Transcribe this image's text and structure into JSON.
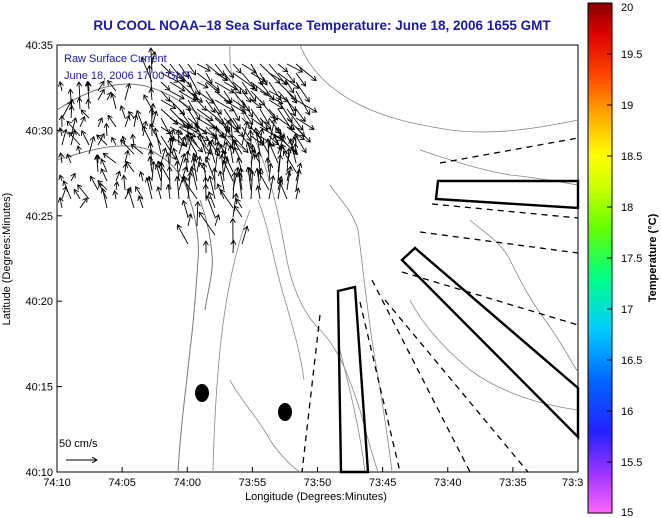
{
  "title": "RU COOL  NOAA–18  Sea Surface Temperature:  June 18, 2006 1655 GMT",
  "annotation": {
    "line1": "Raw Surface Current",
    "line2": "June 18, 2006 17:00 GMT"
  },
  "scale_label": "50 cm/s",
  "map": {
    "xlabel": "Longitude (Degrees:Minutes)",
    "ylabel": "Latitude (Degrees:Minutes)",
    "x_ticks": [
      "74:10",
      "74:05",
      "74:00",
      "73:55",
      "73:50",
      "73:45",
      "73:40",
      "73:35",
      "73:3"
    ],
    "y_ticks": [
      "40:35",
      "40:30",
      "40:25",
      "40:20",
      "40:15",
      "40:10"
    ],
    "text_color": "#1a1aa0"
  },
  "colorbar": {
    "label": "Temperature (°C)",
    "ticks": [
      "20",
      "19.5",
      "19",
      "18.5",
      "18",
      "17.5",
      "17",
      "16.5",
      "16",
      "15.5",
      "15"
    ],
    "min": 15,
    "max": 20
  }
}
